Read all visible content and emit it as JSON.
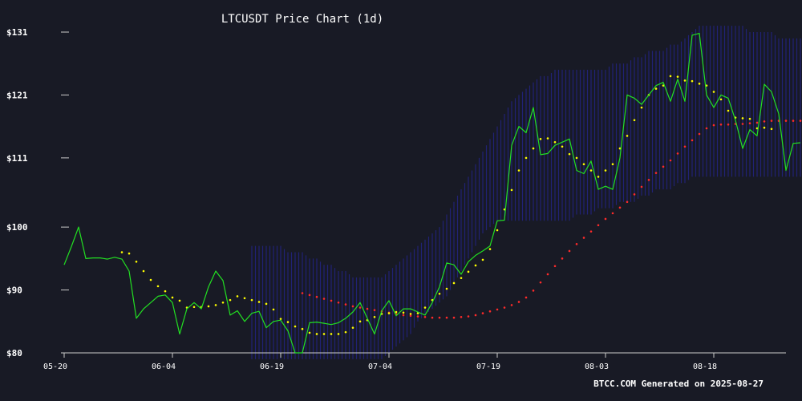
{
  "chart_data": {
    "type": "line",
    "title": "LTCUSDT Price Chart (1d)",
    "footer": "BTCC.COM Generated on 2025-08-27",
    "x_ticks": [
      "05-20",
      "06-04",
      "06-19",
      "07-04",
      "07-19",
      "08-03",
      "08-18"
    ],
    "y_ticks": [
      "$80",
      "$90",
      "$100",
      "$111",
      "$121",
      "$131"
    ],
    "ylim": [
      80,
      131
    ],
    "dates_start": "2025-05-20",
    "colors": {
      "background": "#181a25",
      "price": "#22e022",
      "ma_fast": "#ffff00",
      "ma_slow": "#ff2a2a",
      "band": "#2a2ab8",
      "axis": "#cccccc",
      "text": "#ffffff"
    },
    "series": [
      {
        "key": "price",
        "values": [
          94.0,
          96.9,
          100.0,
          95.0,
          95.1,
          95.1,
          94.9,
          95.2,
          94.9,
          93.0,
          85.5,
          87.0,
          88.0,
          89.0,
          89.2,
          88.0,
          83.0,
          87.0,
          88.0,
          87.0,
          90.5,
          93.0,
          91.5,
          86.0,
          86.7,
          85.0,
          86.3,
          86.6,
          84.0,
          85.0,
          85.2,
          83.5,
          80.0,
          80.0,
          84.8,
          84.9,
          84.7,
          84.5,
          84.8,
          85.5,
          86.5,
          88.0,
          85.5,
          83.0,
          86.7,
          88.3,
          85.9,
          87.0,
          87.0,
          86.5,
          86.0,
          88.0,
          90.5,
          94.3,
          94.0,
          92.5,
          94.5,
          95.5,
          96.2,
          97.0,
          101.0,
          101.1,
          113.0,
          116.0,
          115.0,
          119.0,
          111.5,
          111.7,
          113.0,
          113.5,
          114.0,
          109.0,
          108.5,
          110.5,
          106.0,
          106.5,
          106.0,
          111.0,
          121.0,
          120.5,
          119.5,
          121.0,
          122.5,
          123.0,
          120.0,
          123.5,
          120.0,
          130.5,
          130.8,
          121.0,
          119.0,
          121.0,
          120.5,
          117.0,
          112.5,
          115.5,
          114.5,
          122.7,
          121.5,
          118.0,
          109.0,
          113.3,
          113.4
        ]
      },
      {
        "key": "ma_fast",
        "start_index": 8,
        "values": [
          96.0,
          95.8,
          94.5,
          93.0,
          91.6,
          90.6,
          89.8,
          88.8,
          88.3,
          87.2,
          87.3,
          87.3,
          87.4,
          87.6,
          88.0,
          88.4,
          89.0,
          88.7,
          88.4,
          88.1,
          87.8,
          86.9,
          85.4,
          84.9,
          84.2,
          83.8,
          83.2,
          83.0,
          83.0,
          83.0,
          83.0,
          83.3,
          84.0,
          85.0,
          85.2,
          85.7,
          86.2,
          86.3,
          86.5,
          86.4,
          86.2,
          86.3,
          87.2,
          88.4,
          89.4,
          90.2,
          91.1,
          91.9,
          92.9,
          93.9,
          94.8,
          96.5,
          99.5,
          102.8,
          105.9,
          109.0,
          111.0,
          112.5,
          114.0,
          114.1,
          113.5,
          112.8,
          111.6,
          111.0,
          110.0,
          109.0,
          108.0,
          109.0,
          110.0,
          112.5,
          114.5,
          117.0,
          119.0,
          121.0,
          122.0,
          122.5,
          124.0,
          123.9,
          123.3,
          123.2,
          122.8,
          122.5,
          121.5,
          120.3,
          118.5,
          117.4,
          117.3,
          117.2,
          115.7,
          115.8,
          115.6
        ]
      },
      {
        "key": "ma_slow",
        "start_index": 33,
        "values": [
          89.5,
          89.2,
          88.9,
          88.6,
          88.3,
          88.0,
          87.7,
          87.4,
          87.2,
          87.0,
          86.8,
          86.6,
          86.4,
          86.2,
          86.0,
          85.9,
          85.8,
          85.7,
          85.6,
          85.6,
          85.6,
          85.6,
          85.7,
          85.8,
          86.0,
          86.3,
          86.6,
          86.9,
          87.2,
          87.6,
          88.1,
          88.8,
          89.9,
          91.2,
          92.5,
          93.8,
          95.0,
          96.2,
          97.3,
          98.3,
          99.3,
          100.3,
          101.3,
          102.2,
          103.1,
          104.0,
          105.2,
          106.4,
          107.5,
          108.6,
          109.6,
          110.6,
          111.7,
          112.8,
          113.8,
          114.8,
          115.7,
          116.2,
          116.3,
          116.3,
          116.4,
          116.4,
          116.5,
          116.6,
          116.8,
          116.9,
          116.9,
          116.9,
          116.9,
          116.9
        ]
      }
    ],
    "band": {
      "start_index": 26,
      "lower": [
        79,
        79,
        79,
        79,
        79,
        79,
        79,
        79,
        79,
        79,
        79,
        79,
        79,
        79,
        79,
        79,
        79,
        79,
        79,
        80,
        81,
        82,
        83,
        85,
        86,
        87,
        88,
        89,
        91,
        93,
        95,
        97,
        99,
        100,
        101,
        101,
        101,
        101,
        101,
        101,
        101,
        101,
        101,
        101,
        101,
        102,
        102,
        102,
        103,
        103,
        103,
        104,
        104,
        104,
        105,
        105,
        106,
        106,
        106,
        107,
        107,
        108,
        108,
        108,
        108,
        108,
        108,
        108,
        108,
        108,
        108,
        108,
        108,
        108,
        108,
        108,
        108,
        108
      ],
      "upper": [
        97,
        97,
        97,
        97,
        97,
        96,
        96,
        96,
        95,
        95,
        94,
        94,
        93,
        93,
        92,
        92,
        92,
        92,
        92,
        93,
        94,
        95,
        96,
        97,
        98,
        99,
        100,
        102,
        104,
        106,
        108,
        110,
        112,
        114,
        116,
        118,
        120,
        121,
        122,
        123,
        124,
        124,
        125,
        125,
        125,
        125,
        125,
        125,
        125,
        125,
        126,
        126,
        126,
        127,
        127,
        128,
        128,
        128,
        129,
        129,
        130,
        131,
        132,
        132,
        132,
        132,
        132,
        132,
        132,
        131,
        131,
        131,
        131,
        130,
        130,
        130,
        130,
        130
      ]
    }
  }
}
